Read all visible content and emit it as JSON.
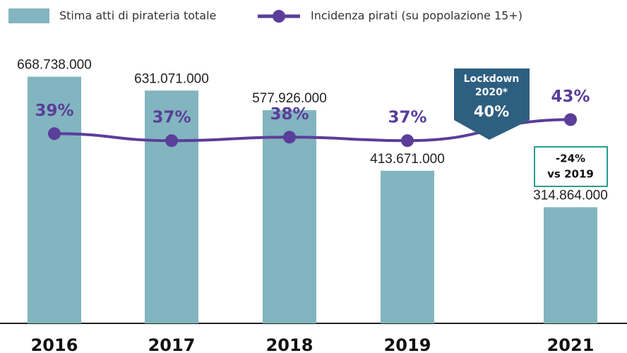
{
  "chart_data": {
    "type": "bar",
    "categories": [
      "2016",
      "2017",
      "2018",
      "2019",
      "2021"
    ],
    "series": [
      {
        "name": "Stima atti di pirateria totale",
        "type": "bar",
        "color": "#82b5bf",
        "values": [
          668738000,
          631071000,
          577926000,
          413671000,
          314864000
        ],
        "value_labels": [
          "668.738.000",
          "631.071.000",
          "577.926.000",
          "413.671.000",
          "314.864.000"
        ]
      },
      {
        "name": "Incidenza pirati (su popolazione 15+)",
        "type": "line",
        "axis": "y2",
        "color": "#5b3d9a",
        "values": [
          39,
          37,
          38,
          37,
          43
        ],
        "value_labels": [
          "39%",
          "37%",
          "38%",
          "37%",
          "43%"
        ]
      }
    ],
    "ylim": [
      0,
      800000000
    ],
    "y2lim": [
      -15,
      69
    ],
    "annotations": [
      {
        "lines": [
          "Lockdown",
          "2020*"
        ],
        "value": 40,
        "value_label": "40%"
      },
      {
        "lines": [
          "-24%",
          "vs 2019"
        ]
      }
    ]
  }
}
